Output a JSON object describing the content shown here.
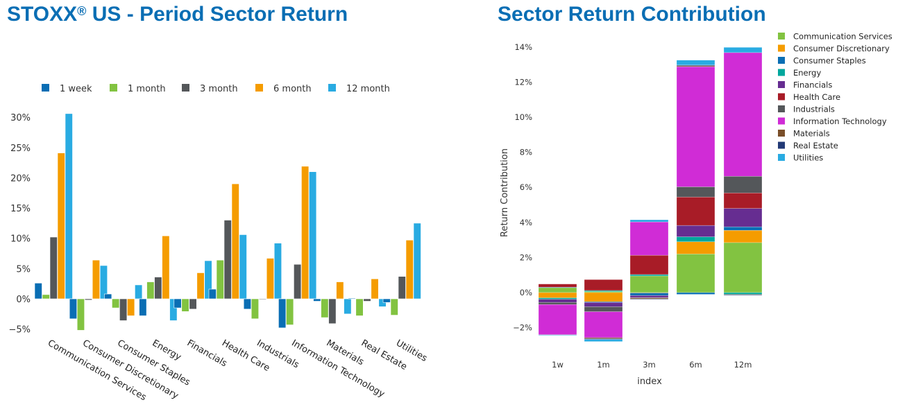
{
  "chart_data": [
    {
      "id": "period-sector-return",
      "type": "bar",
      "title": "STOXX",
      "title_sup": "®",
      "title_rest": " US - Period Sector Return",
      "xlabel": "",
      "ylabel": "",
      "ylim": [
        -5,
        30
      ],
      "yticks": [
        -5,
        0,
        5,
        10,
        15,
        20,
        25,
        30
      ],
      "ytick_labels": [
        "−5%",
        "0%",
        "5%",
        "10%",
        "15%",
        "20%",
        "25%",
        "30%"
      ],
      "grid": false,
      "legend_position": "top",
      "categories": [
        "Communication Services",
        "Consumer Discretionary",
        "Consumer Staples",
        "Energy",
        "Financials",
        "Health Care",
        "Industrials",
        "Information Technology",
        "Materials",
        "Real Estate",
        "Utilities"
      ],
      "series": [
        {
          "name": "1 week",
          "color": "#0a6eb4",
          "values": [
            2.6,
            -3.3,
            0.8,
            -2.8,
            -1.5,
            1.6,
            -1.7,
            -4.8,
            -0.4,
            0.1,
            -0.6
          ]
        },
        {
          "name": "1 month",
          "color": "#82c341",
          "values": [
            0.7,
            -5.2,
            -1.5,
            2.8,
            -2.1,
            6.4,
            -3.3,
            -4.3,
            -3.1,
            -2.8,
            -2.7
          ]
        },
        {
          "name": "3 month",
          "color": "#54575a",
          "values": [
            10.2,
            -0.2,
            -3.6,
            3.6,
            -1.7,
            13.0,
            -0.1,
            5.7,
            -4.1,
            -0.4,
            3.7
          ]
        },
        {
          "name": "6 month",
          "color": "#f59c00",
          "values": [
            24.1,
            6.4,
            -2.8,
            10.4,
            4.3,
            19.0,
            6.7,
            21.9,
            2.8,
            3.3,
            9.7
          ]
        },
        {
          "name": "12 month",
          "color": "#29abe2",
          "values": [
            30.6,
            5.5,
            2.3,
            -3.6,
            6.3,
            10.6,
            9.2,
            21.0,
            -2.5,
            -1.3,
            12.5
          ]
        }
      ]
    },
    {
      "id": "sector-return-contribution",
      "type": "bar",
      "stacked": true,
      "title": "Sector Return Contribution",
      "xlabel": "index",
      "ylabel": "Return Contribution",
      "ylim": [
        -2.8,
        14.2
      ],
      "yticks": [
        -2,
        0,
        2,
        4,
        6,
        8,
        10,
        12,
        14
      ],
      "ytick_labels": [
        "−2%",
        "0%",
        "2%",
        "4%",
        "6%",
        "8%",
        "10%",
        "12%",
        "14%"
      ],
      "grid": false,
      "legend_position": "right",
      "categories": [
        "1w",
        "1m",
        "3m",
        "6m",
        "12m"
      ],
      "series": [
        {
          "name": "Communication Services",
          "color": "#82c341",
          "values": [
            0.3,
            0.06,
            0.95,
            2.2,
            2.85
          ]
        },
        {
          "name": "Consumer Discretionary",
          "color": "#f59c00",
          "values": [
            -0.3,
            -0.52,
            -0.02,
            0.7,
            0.7
          ]
        },
        {
          "name": "Consumer Staples",
          "color": "#0a6eb4",
          "values": [
            0.01,
            -0.04,
            -0.15,
            -0.1,
            0.2
          ]
        },
        {
          "name": "Energy",
          "color": "#00a79d",
          "values": [
            -0.08,
            0.06,
            0.08,
            0.28,
            -0.1
          ]
        },
        {
          "name": "Financials",
          "color": "#662d91",
          "values": [
            -0.18,
            -0.25,
            -0.12,
            0.65,
            1.05
          ]
        },
        {
          "name": "Health Care",
          "color": "#a81c27",
          "values": [
            0.18,
            0.62,
            1.1,
            1.62,
            0.88
          ]
        },
        {
          "name": "Industrials",
          "color": "#54575a",
          "values": [
            -0.12,
            -0.28,
            -0.01,
            0.58,
            0.95
          ]
        },
        {
          "name": "Information Technology",
          "color": "#d02cd6",
          "values": [
            -1.72,
            -1.48,
            1.9,
            6.85,
            7.05
          ]
        },
        {
          "name": "Materials",
          "color": "#7a4f2a",
          "values": [
            -0.01,
            -0.06,
            -0.06,
            0.05,
            -0.03
          ]
        },
        {
          "name": "Real Estate",
          "color": "#233a76",
          "values": [
            0.0,
            -0.04,
            -0.01,
            0.04,
            -0.02
          ]
        },
        {
          "name": "Utilities",
          "color": "#29abe2",
          "values": [
            -0.02,
            -0.12,
            0.12,
            0.28,
            0.3
          ]
        }
      ]
    }
  ]
}
